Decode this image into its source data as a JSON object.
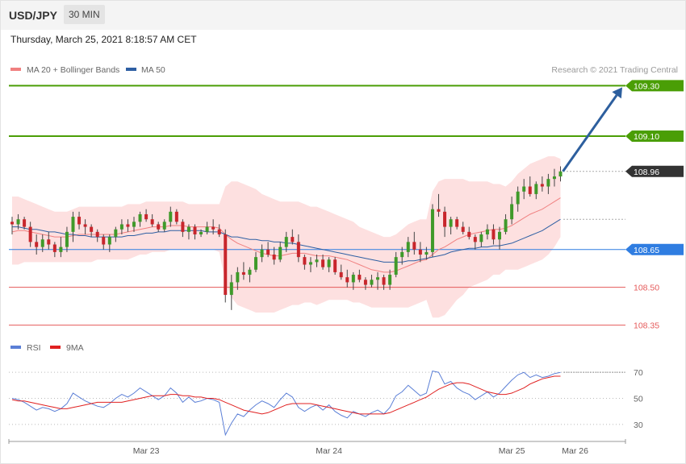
{
  "header": {
    "symbol": "USD/JPY",
    "timeframe": "30 MIN",
    "datetime": "Thursday, March 25, 2021 8:18:57 AM CET"
  },
  "legend": {
    "ma20": {
      "label": "MA 20 + Bollinger Bands",
      "color": "#f08080"
    },
    "ma50": {
      "label": "MA 50",
      "color": "#2e5fa3"
    },
    "credit": "Research © 2021 Trading Central"
  },
  "rsi_legend": {
    "rsi": {
      "label": "RSI",
      "color": "#5b7fd6"
    },
    "ma9": {
      "label": "9MA",
      "color": "#e02020"
    }
  },
  "chart_data": [
    {
      "type": "candlestick",
      "x_tick_labels": [
        "Mar 23",
        "Mar 24",
        "Mar 25",
        "Mar 26"
      ],
      "current_price": "108.96",
      "levels": [
        {
          "value": 109.3,
          "label": "109.30",
          "color": "#4a9e06",
          "kind": "resistance"
        },
        {
          "value": 109.1,
          "label": "109.10",
          "color": "#4a9e06",
          "kind": "resistance"
        },
        {
          "value": 108.65,
          "label": "108.65",
          "color": "#2f7de1",
          "kind": "pivot"
        },
        {
          "value": 108.5,
          "label": "108.50",
          "color": "#e55a5a",
          "kind": "support"
        },
        {
          "value": 108.35,
          "label": "108.35",
          "color": "#e55a5a",
          "kind": "support"
        }
      ],
      "target_arrow": {
        "from": 108.96,
        "to": 109.3
      },
      "ylim": [
        108.32,
        109.33
      ],
      "candles": [
        [
          108.76,
          108.78,
          108.71,
          108.75
        ],
        [
          108.75,
          108.79,
          108.73,
          108.77
        ],
        [
          108.77,
          108.78,
          108.73,
          108.74
        ],
        [
          108.74,
          108.76,
          108.66,
          108.68
        ],
        [
          108.68,
          108.71,
          108.63,
          108.66
        ],
        [
          108.66,
          108.71,
          108.64,
          108.69
        ],
        [
          108.69,
          108.72,
          108.65,
          108.67
        ],
        [
          108.67,
          108.68,
          108.62,
          108.64
        ],
        [
          108.64,
          108.7,
          108.62,
          108.66
        ],
        [
          108.66,
          108.74,
          108.64,
          108.72
        ],
        [
          108.72,
          108.8,
          108.68,
          108.78
        ],
        [
          108.78,
          108.8,
          108.73,
          108.75
        ],
        [
          108.75,
          108.77,
          108.71,
          108.74
        ],
        [
          108.74,
          108.75,
          108.7,
          108.72
        ],
        [
          108.72,
          108.73,
          108.68,
          108.7
        ],
        [
          108.7,
          108.71,
          108.65,
          108.67
        ],
        [
          108.67,
          108.71,
          108.64,
          108.7
        ],
        [
          108.7,
          108.74,
          108.68,
          108.73
        ],
        [
          108.73,
          108.77,
          108.71,
          108.75
        ],
        [
          108.75,
          108.77,
          108.72,
          108.74
        ],
        [
          108.74,
          108.78,
          108.72,
          108.76
        ],
        [
          108.76,
          108.8,
          108.74,
          108.79
        ],
        [
          108.79,
          108.81,
          108.76,
          108.77
        ],
        [
          108.77,
          108.79,
          108.74,
          108.75
        ],
        [
          108.75,
          108.76,
          108.72,
          108.73
        ],
        [
          108.73,
          108.77,
          108.72,
          108.76
        ],
        [
          108.76,
          108.82,
          108.74,
          108.8
        ],
        [
          108.8,
          108.81,
          108.75,
          108.76
        ],
        [
          108.76,
          108.77,
          108.7,
          108.72
        ],
        [
          108.72,
          108.75,
          108.69,
          108.74
        ],
        [
          108.74,
          108.75,
          108.69,
          108.71
        ],
        [
          108.71,
          108.73,
          108.7,
          108.72
        ],
        [
          108.72,
          108.76,
          108.71,
          108.74
        ],
        [
          108.74,
          108.77,
          108.71,
          108.73
        ],
        [
          108.73,
          108.75,
          108.7,
          108.71
        ],
        [
          108.71,
          108.73,
          108.44,
          108.47
        ],
        [
          108.47,
          108.55,
          108.41,
          108.52
        ],
        [
          108.52,
          108.58,
          108.49,
          108.56
        ],
        [
          108.56,
          108.6,
          108.53,
          108.55
        ],
        [
          108.55,
          108.58,
          108.52,
          108.57
        ],
        [
          108.57,
          108.64,
          108.56,
          108.62
        ],
        [
          108.62,
          108.67,
          108.6,
          108.65
        ],
        [
          108.65,
          108.68,
          108.62,
          108.63
        ],
        [
          108.63,
          108.66,
          108.59,
          108.61
        ],
        [
          108.61,
          108.68,
          108.6,
          108.66
        ],
        [
          108.66,
          108.72,
          108.64,
          108.7
        ],
        [
          108.7,
          108.73,
          108.67,
          108.68
        ],
        [
          108.68,
          108.71,
          108.6,
          108.62
        ],
        [
          108.62,
          108.63,
          108.57,
          108.59
        ],
        [
          108.59,
          108.62,
          108.56,
          108.6
        ],
        [
          108.6,
          108.63,
          108.58,
          108.61
        ],
        [
          108.61,
          108.63,
          108.57,
          108.58
        ],
        [
          108.58,
          108.62,
          108.56,
          108.61
        ],
        [
          108.61,
          108.62,
          108.55,
          108.56
        ],
        [
          108.56,
          108.59,
          108.53,
          108.54
        ],
        [
          108.54,
          108.57,
          108.5,
          108.52
        ],
        [
          108.52,
          108.56,
          108.49,
          108.55
        ],
        [
          108.55,
          108.57,
          108.52,
          108.53
        ],
        [
          108.53,
          108.54,
          108.49,
          108.51
        ],
        [
          108.51,
          108.55,
          108.5,
          108.53
        ],
        [
          108.53,
          108.56,
          108.49,
          108.54
        ],
        [
          108.54,
          108.55,
          108.49,
          108.51
        ],
        [
          108.51,
          108.57,
          108.49,
          108.55
        ],
        [
          108.55,
          108.64,
          108.54,
          108.62
        ],
        [
          108.62,
          108.66,
          108.59,
          108.64
        ],
        [
          108.64,
          108.7,
          108.62,
          108.68
        ],
        [
          108.68,
          108.72,
          108.63,
          108.65
        ],
        [
          108.65,
          108.68,
          108.6,
          108.63
        ],
        [
          108.63,
          108.66,
          108.61,
          108.64
        ],
        [
          108.64,
          108.83,
          108.62,
          108.81
        ],
        [
          108.81,
          108.87,
          108.78,
          108.8
        ],
        [
          108.8,
          108.82,
          108.7,
          108.74
        ],
        [
          108.74,
          108.78,
          108.71,
          108.77
        ],
        [
          108.77,
          108.78,
          108.73,
          108.74
        ],
        [
          108.74,
          108.76,
          108.71,
          108.72
        ],
        [
          108.72,
          108.74,
          108.69,
          108.7
        ],
        [
          108.7,
          108.71,
          108.65,
          108.68
        ],
        [
          108.68,
          108.72,
          108.66,
          108.71
        ],
        [
          108.71,
          108.75,
          108.69,
          108.73
        ],
        [
          108.73,
          108.75,
          108.67,
          108.69
        ],
        [
          108.69,
          108.74,
          108.65,
          108.72
        ],
        [
          108.72,
          108.79,
          108.71,
          108.77
        ],
        [
          108.77,
          108.86,
          108.75,
          108.83
        ],
        [
          108.83,
          108.9,
          108.8,
          108.88
        ],
        [
          108.88,
          108.93,
          108.85,
          108.9
        ],
        [
          108.9,
          108.94,
          108.86,
          108.87
        ],
        [
          108.87,
          108.92,
          108.85,
          108.91
        ],
        [
          108.91,
          108.94,
          108.88,
          108.9
        ],
        [
          108.9,
          108.95,
          108.87,
          108.93
        ],
        [
          108.93,
          108.97,
          108.9,
          108.94
        ],
        [
          108.94,
          108.98,
          108.92,
          108.96
        ]
      ],
      "ma20": [
        108.72,
        108.725,
        108.725,
        108.72,
        108.715,
        108.71,
        108.705,
        108.7,
        108.7,
        108.7,
        108.705,
        108.71,
        108.71,
        108.71,
        108.71,
        108.71,
        108.71,
        108.71,
        108.715,
        108.72,
        108.725,
        108.73,
        108.735,
        108.74,
        108.74,
        108.74,
        108.745,
        108.745,
        108.745,
        108.74,
        108.74,
        108.74,
        108.74,
        108.74,
        108.735,
        108.71,
        108.69,
        108.675,
        108.665,
        108.655,
        108.645,
        108.635,
        108.63,
        108.625,
        108.625,
        108.63,
        108.635,
        108.635,
        108.635,
        108.63,
        108.625,
        108.625,
        108.625,
        108.62,
        108.615,
        108.61,
        108.6,
        108.59,
        108.58,
        108.57,
        108.565,
        108.56,
        108.56,
        108.565,
        108.575,
        108.585,
        108.595,
        108.605,
        108.61,
        108.63,
        108.65,
        108.66,
        108.675,
        108.69,
        108.7,
        108.71,
        108.715,
        108.72,
        108.725,
        108.73,
        108.73,
        108.735,
        108.745,
        108.76,
        108.775,
        108.79,
        108.8,
        108.81,
        108.825,
        108.84,
        108.855
      ],
      "ma50": [
        108.74,
        108.74,
        108.735,
        108.73,
        108.73,
        108.725,
        108.72,
        108.72,
        108.715,
        108.71,
        108.71,
        108.705,
        108.705,
        108.7,
        108.7,
        108.7,
        108.7,
        108.7,
        108.7,
        108.705,
        108.705,
        108.71,
        108.715,
        108.715,
        108.72,
        108.72,
        108.725,
        108.725,
        108.725,
        108.725,
        108.725,
        108.725,
        108.72,
        108.72,
        108.72,
        108.71,
        108.7,
        108.7,
        108.695,
        108.69,
        108.69,
        108.685,
        108.685,
        108.68,
        108.68,
        108.675,
        108.675,
        108.67,
        108.665,
        108.66,
        108.655,
        108.65,
        108.645,
        108.64,
        108.635,
        108.63,
        108.625,
        108.62,
        108.615,
        108.61,
        108.605,
        108.6,
        108.6,
        108.6,
        108.6,
        108.605,
        108.605,
        108.61,
        108.615,
        108.62,
        108.625,
        108.63,
        108.64,
        108.645,
        108.65,
        108.655,
        108.655,
        108.66,
        108.66,
        108.665,
        108.665,
        108.67,
        108.675,
        108.685,
        108.695,
        108.705,
        108.715,
        108.725,
        108.74,
        108.755,
        108.77
      ],
      "bb_upper": [
        108.86,
        108.86,
        108.85,
        108.84,
        108.83,
        108.82,
        108.81,
        108.8,
        108.8,
        108.8,
        108.81,
        108.82,
        108.82,
        108.82,
        108.82,
        108.82,
        108.82,
        108.82,
        108.82,
        108.83,
        108.83,
        108.83,
        108.84,
        108.84,
        108.84,
        108.84,
        108.84,
        108.84,
        108.84,
        108.83,
        108.83,
        108.83,
        108.83,
        108.83,
        108.83,
        108.9,
        108.92,
        108.92,
        108.91,
        108.9,
        108.89,
        108.87,
        108.86,
        108.85,
        108.84,
        108.84,
        108.84,
        108.84,
        108.83,
        108.82,
        108.82,
        108.81,
        108.8,
        108.79,
        108.78,
        108.77,
        108.76,
        108.74,
        108.73,
        108.72,
        108.71,
        108.7,
        108.7,
        108.71,
        108.73,
        108.75,
        108.76,
        108.77,
        108.77,
        108.88,
        108.92,
        108.93,
        108.93,
        108.93,
        108.93,
        108.92,
        108.92,
        108.92,
        108.92,
        108.91,
        108.91,
        108.9,
        108.92,
        108.95,
        108.97,
        108.99,
        109.0,
        109.01,
        109.02,
        109.02,
        109.01
      ],
      "bb_lower": [
        108.59,
        108.59,
        108.6,
        108.6,
        108.6,
        108.6,
        108.6,
        108.6,
        108.6,
        108.6,
        108.6,
        108.6,
        108.6,
        108.6,
        108.61,
        108.61,
        108.61,
        108.61,
        108.61,
        108.61,
        108.62,
        108.63,
        108.63,
        108.64,
        108.64,
        108.64,
        108.65,
        108.65,
        108.65,
        108.65,
        108.65,
        108.65,
        108.65,
        108.65,
        108.64,
        108.52,
        108.46,
        108.43,
        108.42,
        108.41,
        108.4,
        108.4,
        108.4,
        108.4,
        108.41,
        108.42,
        108.43,
        108.43,
        108.44,
        108.44,
        108.43,
        108.44,
        108.45,
        108.45,
        108.45,
        108.45,
        108.44,
        108.44,
        108.43,
        108.42,
        108.42,
        108.42,
        108.42,
        108.42,
        108.42,
        108.42,
        108.43,
        108.44,
        108.45,
        108.38,
        108.38,
        108.39,
        108.42,
        108.45,
        108.47,
        108.5,
        108.51,
        108.52,
        108.53,
        108.55,
        108.55,
        108.57,
        108.57,
        108.57,
        108.58,
        108.59,
        108.6,
        108.61,
        108.63,
        108.66,
        108.7
      ]
    },
    {
      "type": "line",
      "series": [
        {
          "name": "RSI",
          "values": [
            50,
            49,
            47,
            44,
            41,
            43,
            42,
            40,
            42,
            46,
            54,
            51,
            48,
            46,
            44,
            43,
            46,
            50,
            53,
            51,
            54,
            58,
            55,
            52,
            49,
            52,
            58,
            54,
            47,
            51,
            47,
            48,
            50,
            49,
            47,
            22,
            31,
            38,
            36,
            41,
            45,
            48,
            46,
            43,
            49,
            54,
            51,
            43,
            40,
            43,
            45,
            41,
            45,
            40,
            37,
            35,
            40,
            38,
            36,
            39,
            41,
            38,
            43,
            52,
            55,
            60,
            56,
            52,
            54,
            71,
            70,
            61,
            63,
            58,
            55,
            53,
            49,
            52,
            55,
            51,
            54,
            59,
            64,
            68,
            70,
            66,
            68,
            66,
            67,
            69,
            70
          ]
        },
        {
          "name": "9MA",
          "values": [
            49,
            48,
            48,
            47,
            46,
            45,
            44,
            43,
            42,
            42,
            43,
            44,
            45,
            46,
            47,
            47,
            47,
            47,
            47,
            48,
            49,
            50,
            51,
            52,
            52,
            52,
            53,
            53,
            52,
            52,
            51,
            51,
            50,
            50,
            49,
            47,
            45,
            43,
            41,
            40,
            39,
            38,
            39,
            41,
            43,
            45,
            46,
            46,
            46,
            46,
            45,
            44,
            43,
            42,
            41,
            40,
            39,
            38,
            38,
            38,
            38,
            38,
            39,
            41,
            43,
            45,
            47,
            49,
            51,
            54,
            57,
            59,
            61,
            62,
            62,
            61,
            59,
            57,
            55,
            54,
            53,
            53,
            54,
            56,
            58,
            61,
            63,
            65,
            66,
            67,
            67
          ]
        }
      ],
      "ylim": [
        20,
        80
      ],
      "y_ticks": [
        {
          "value": 70,
          "label": "70"
        },
        {
          "value": 50,
          "label": "50"
        },
        {
          "value": 30,
          "label": "30"
        }
      ]
    }
  ]
}
